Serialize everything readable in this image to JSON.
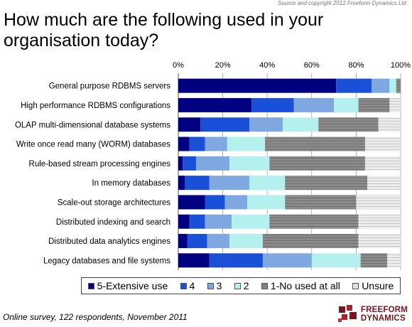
{
  "header": {
    "copyright": "Source and copyright 2012 Freeform Dynamics Ltd",
    "title": "How much are the following used in your organisation today?"
  },
  "footer": {
    "note": "Online survey, 122 respondents, November 2011",
    "logo_line1": "FREEFORM",
    "logo_line2": "DYNAMICS"
  },
  "chart_data": {
    "type": "bar",
    "orientation": "horizontal",
    "stacked": "percent",
    "title": "How much are the following used in your organisation today?",
    "xlim": [
      0,
      100
    ],
    "x_ticks": [
      "0%",
      "20%",
      "40%",
      "60%",
      "80%",
      "100%"
    ],
    "grid": true,
    "legend_position": "bottom",
    "categories": [
      "General purpose RDBMS servers",
      "High performance RDBMS configurations",
      "OLAP multi-dimensional database systems",
      "Write once read many (WORM) databases",
      "Rule-based stream processing engines",
      "In memory databases",
      "Scale-out storage architectures",
      "Distributed indexing and search",
      "Distributed data analytics engines",
      "Legacy databases and file systems"
    ],
    "series": [
      {
        "name": "5-Extensive use",
        "color": "#000080",
        "values": [
          71,
          33,
          10,
          5,
          2,
          3,
          12,
          5,
          4,
          14
        ]
      },
      {
        "name": "4",
        "color": "#1a50d8",
        "values": [
          16,
          19,
          22,
          7,
          6,
          11,
          9,
          7,
          9,
          24
        ]
      },
      {
        "name": "3",
        "color": "#7fa8e0",
        "values": [
          8,
          18,
          15,
          10,
          15,
          18,
          10,
          12,
          10,
          22
        ]
      },
      {
        "name": "2",
        "color": "#b3f0ee",
        "values": [
          3,
          11,
          16,
          17,
          18,
          16,
          17,
          17,
          15,
          22
        ]
      },
      {
        "name": "1-No used at all",
        "color": "#808080",
        "values": [
          2,
          14,
          27,
          45,
          43,
          37,
          32,
          40,
          43,
          12
        ]
      },
      {
        "name": "Unsure",
        "color": "#dcdcdc",
        "values": [
          0,
          5,
          10,
          16,
          16,
          15,
          20,
          19,
          19,
          6
        ]
      }
    ]
  }
}
